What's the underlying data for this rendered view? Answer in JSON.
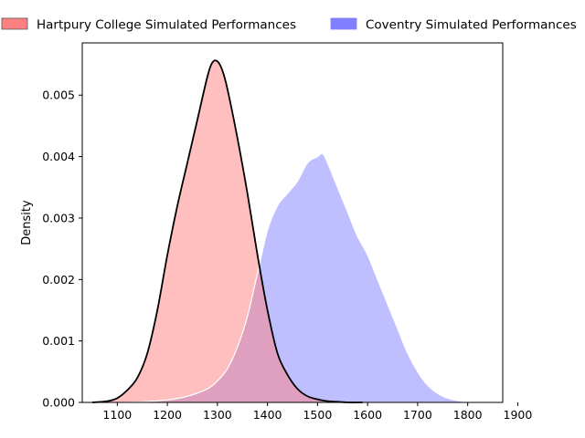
{
  "chart_data": {
    "type": "area",
    "title": "",
    "xlabel": "",
    "ylabel": "Density",
    "xlim": [
      1030,
      1870
    ],
    "ylim": [
      0,
      0.00585
    ],
    "x_ticks": [
      1100,
      1200,
      1300,
      1400,
      1500,
      1600,
      1700,
      1800,
      1900
    ],
    "x_tick_labels": [
      "1100",
      "1200",
      "1300",
      "1400",
      "1500",
      "1600",
      "1700",
      "1800",
      "1900"
    ],
    "y_ticks": [
      0,
      0.001,
      0.002,
      0.003,
      0.004,
      0.005
    ],
    "y_tick_labels": [
      "0.000",
      "0.001",
      "0.002",
      "0.003",
      "0.004",
      "0.005"
    ],
    "grid": false,
    "legend_placement": "top",
    "series": [
      {
        "name": "Hartpury College Simulated Performances",
        "fill_color": "#ff8080",
        "fill_opacity": 0.5,
        "line_color": "#000000",
        "x": [
          1050,
          1080,
          1100,
          1120,
          1140,
          1160,
          1180,
          1200,
          1220,
          1240,
          1260,
          1280,
          1290,
          1300,
          1310,
          1320,
          1340,
          1360,
          1380,
          1400,
          1420,
          1440,
          1460,
          1480,
          1500,
          1520,
          1540,
          1560,
          1590
        ],
        "y": [
          0.0,
          2e-05,
          7e-05,
          0.0002,
          0.0004,
          0.0008,
          0.0015,
          0.0024,
          0.0032,
          0.0039,
          0.0046,
          0.0053,
          0.00553,
          0.00555,
          0.0054,
          0.0051,
          0.0043,
          0.0034,
          0.0024,
          0.0015,
          0.0008,
          0.00045,
          0.00022,
          0.0001,
          5e-05,
          2e-05,
          1e-05,
          0.0,
          0.0
        ]
      },
      {
        "name": "Coventry Simulated Performances",
        "fill_color": "#8080ff",
        "fill_opacity": 0.5,
        "line_color": "#ffffff",
        "x": [
          1100,
          1150,
          1200,
          1240,
          1280,
          1300,
          1320,
          1340,
          1360,
          1380,
          1400,
          1420,
          1440,
          1460,
          1480,
          1500,
          1510,
          1520,
          1540,
          1560,
          1580,
          1600,
          1620,
          1640,
          1660,
          1680,
          1700,
          1720,
          1750,
          1780,
          1810
        ],
        "y": [
          0.0,
          1e-05,
          4e-05,
          0.0001,
          0.00022,
          0.00035,
          0.00055,
          0.0009,
          0.0014,
          0.0021,
          0.0028,
          0.0032,
          0.0034,
          0.0036,
          0.0039,
          0.004,
          0.00405,
          0.0039,
          0.0035,
          0.0031,
          0.0027,
          0.0024,
          0.002,
          0.0016,
          0.0012,
          0.0008,
          0.0005,
          0.00028,
          0.0001,
          3e-05,
          0.0
        ]
      }
    ]
  }
}
